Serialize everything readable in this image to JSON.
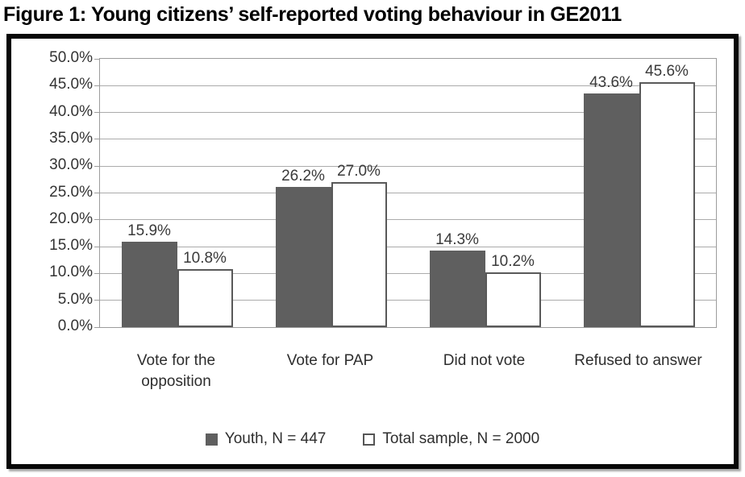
{
  "chart_data": {
    "type": "bar",
    "title": "Figure 1: Young citizens’ self-reported voting behaviour in GE2011",
    "categories": [
      "Vote for the opposition",
      "Vote for PAP",
      "Did not vote",
      "Refused to answer"
    ],
    "series": [
      {
        "name": "Youth, N = 447",
        "values": [
          15.9,
          26.2,
          14.3,
          43.6
        ],
        "labels": [
          "15.9%",
          "26.2%",
          "14.3%",
          "43.6%"
        ],
        "style": "filled",
        "fill": "#5f5f5f"
      },
      {
        "name": "Total sample, N = 2000",
        "values": [
          10.8,
          27.0,
          10.2,
          45.6
        ],
        "labels": [
          "10.8%",
          "27.0%",
          "10.2%",
          "45.6%"
        ],
        "style": "outlined",
        "fill": "#ffffff",
        "border": "#595959"
      }
    ],
    "y_axis": {
      "min": 0,
      "max": 50,
      "step": 5,
      "tick_labels": [
        "0.0%",
        "5.0%",
        "10.0%",
        "15.0%",
        "20.0%",
        "25.0%",
        "30.0%",
        "35.0%",
        "40.0%",
        "45.0%",
        "50.0%"
      ]
    },
    "xlabel": "",
    "ylabel": "",
    "grid": "horizontal",
    "legend_position": "bottom",
    "colors": {
      "bar_dark": "#5f5f5f",
      "bar_light_border": "#595959",
      "gridline": "#ababab",
      "axis_text": "#333333",
      "frame_border": "#070707"
    }
  }
}
